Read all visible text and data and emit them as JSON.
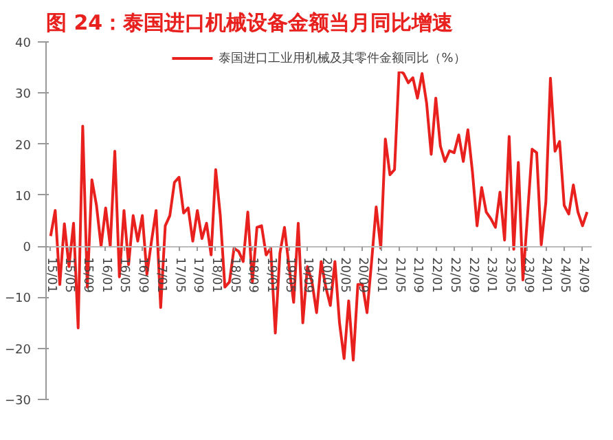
{
  "chart_data": {
    "type": "line",
    "title": "图 24：泰国进口机械设备金额当月同比增速",
    "categories": [
      "15/01",
      null,
      null,
      null,
      "15/05",
      null,
      null,
      null,
      "15/09",
      null,
      null,
      null,
      "16/01",
      null,
      null,
      null,
      "16/05",
      null,
      null,
      null,
      "16/09",
      null,
      null,
      null,
      "17/01",
      null,
      null,
      null,
      "17/05",
      null,
      null,
      null,
      "17/09",
      null,
      null,
      null,
      "18/01",
      null,
      null,
      null,
      "18/05",
      null,
      null,
      null,
      "18/09",
      null,
      null,
      null,
      "19/01",
      null,
      null,
      null,
      "19/05",
      null,
      null,
      null,
      "19/09",
      null,
      null,
      null,
      "20/01",
      null,
      null,
      null,
      "20/05",
      null,
      null,
      null,
      "20/09",
      null,
      null,
      null,
      "21/01",
      null,
      null,
      null,
      "21/05",
      null,
      null,
      null,
      "21/09",
      null,
      null,
      null,
      "22/01",
      null,
      null,
      null,
      "22/05",
      null,
      null,
      null,
      "22/09",
      null,
      null,
      null,
      "23/01",
      null,
      null,
      null,
      "23/05",
      null,
      null,
      null,
      "23/09",
      null,
      null,
      null,
      "24/01",
      null,
      null,
      null,
      "24/05",
      null,
      null,
      null,
      "24/09",
      null
    ],
    "series": [
      {
        "name": "泰国进口工业用机械及其零件金额同比（%）",
        "color": "#e8211e",
        "values": [
          2,
          7,
          -7.5,
          4.4,
          -4,
          4.5,
          -16,
          23.5,
          -8,
          13,
          8,
          0,
          7.5,
          0,
          18.6,
          -6,
          7,
          -3.6,
          6,
          1,
          6,
          -5.5,
          1,
          7,
          -12,
          4,
          6,
          12.5,
          13.5,
          6.5,
          7.5,
          1,
          7,
          1.5,
          4.5,
          -1.7,
          15,
          6,
          -8,
          -7,
          -0.4,
          -1,
          -3,
          6.7,
          -7,
          3.7,
          4,
          -1.7,
          -0.4,
          -17,
          -1.4,
          3.7,
          -4,
          -11,
          4.5,
          -15,
          -4,
          -7,
          -13,
          -3,
          -8,
          -11.6,
          -3,
          -15,
          -22,
          -10.7,
          -22.3,
          -7.5,
          -7.5,
          -13,
          -3,
          7.7,
          -0.4,
          21,
          14,
          15,
          34.5,
          33.8,
          32,
          33,
          29,
          33.8,
          28,
          18,
          29,
          19.6,
          16.6,
          18.7,
          18.3,
          21.8,
          16.6,
          22.8,
          14.5,
          4,
          11.5,
          6.7,
          5.4,
          3.7,
          10.6,
          1.2,
          21.5,
          -0.6,
          16.4,
          -6.6,
          6,
          19,
          18.3,
          0.3,
          8.6,
          32.9,
          18.6,
          20.5,
          8,
          6.3,
          12,
          6.7,
          4,
          6.7
        ]
      }
    ],
    "ylim": [
      -30,
      40
    ],
    "yticks": [
      -30,
      -20,
      -10,
      0,
      10,
      20,
      30,
      40
    ],
    "grid": false,
    "legend": "top"
  }
}
